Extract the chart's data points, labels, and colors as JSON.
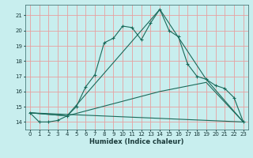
{
  "title": "",
  "xlabel": "Humidex (Indice chaleur)",
  "bg_color": "#c8eeee",
  "grid_color": "#e8a0a0",
  "line_color": "#1a6a5a",
  "xlim": [
    -0.5,
    23.5
  ],
  "ylim": [
    13.5,
    21.7
  ],
  "yticks": [
    14,
    15,
    16,
    17,
    18,
    19,
    20,
    21
  ],
  "xticks": [
    0,
    1,
    2,
    3,
    4,
    5,
    6,
    7,
    8,
    9,
    10,
    11,
    12,
    13,
    14,
    15,
    16,
    17,
    18,
    19,
    20,
    21,
    22,
    23
  ],
  "series1_x": [
    0,
    1,
    2,
    3,
    4,
    5,
    6,
    7,
    8,
    9,
    10,
    11,
    12,
    13,
    14,
    15,
    16,
    17,
    18,
    19,
    20,
    21,
    22,
    23
  ],
  "series1_y": [
    14.6,
    14.0,
    14.0,
    14.1,
    14.4,
    15.0,
    16.3,
    17.1,
    19.2,
    19.5,
    20.3,
    20.2,
    19.4,
    20.5,
    21.4,
    20.0,
    19.6,
    17.8,
    17.0,
    16.8,
    16.4,
    16.2,
    15.6,
    14.0
  ],
  "series2_x": [
    0,
    4,
    14,
    19,
    23
  ],
  "series2_y": [
    14.6,
    14.4,
    21.4,
    16.8,
    14.0
  ],
  "series3_x": [
    0,
    4,
    14,
    19,
    23
  ],
  "series3_y": [
    14.6,
    14.4,
    16.0,
    16.6,
    14.0
  ],
  "series4_x": [
    0,
    23
  ],
  "series4_y": [
    14.6,
    14.0
  ]
}
